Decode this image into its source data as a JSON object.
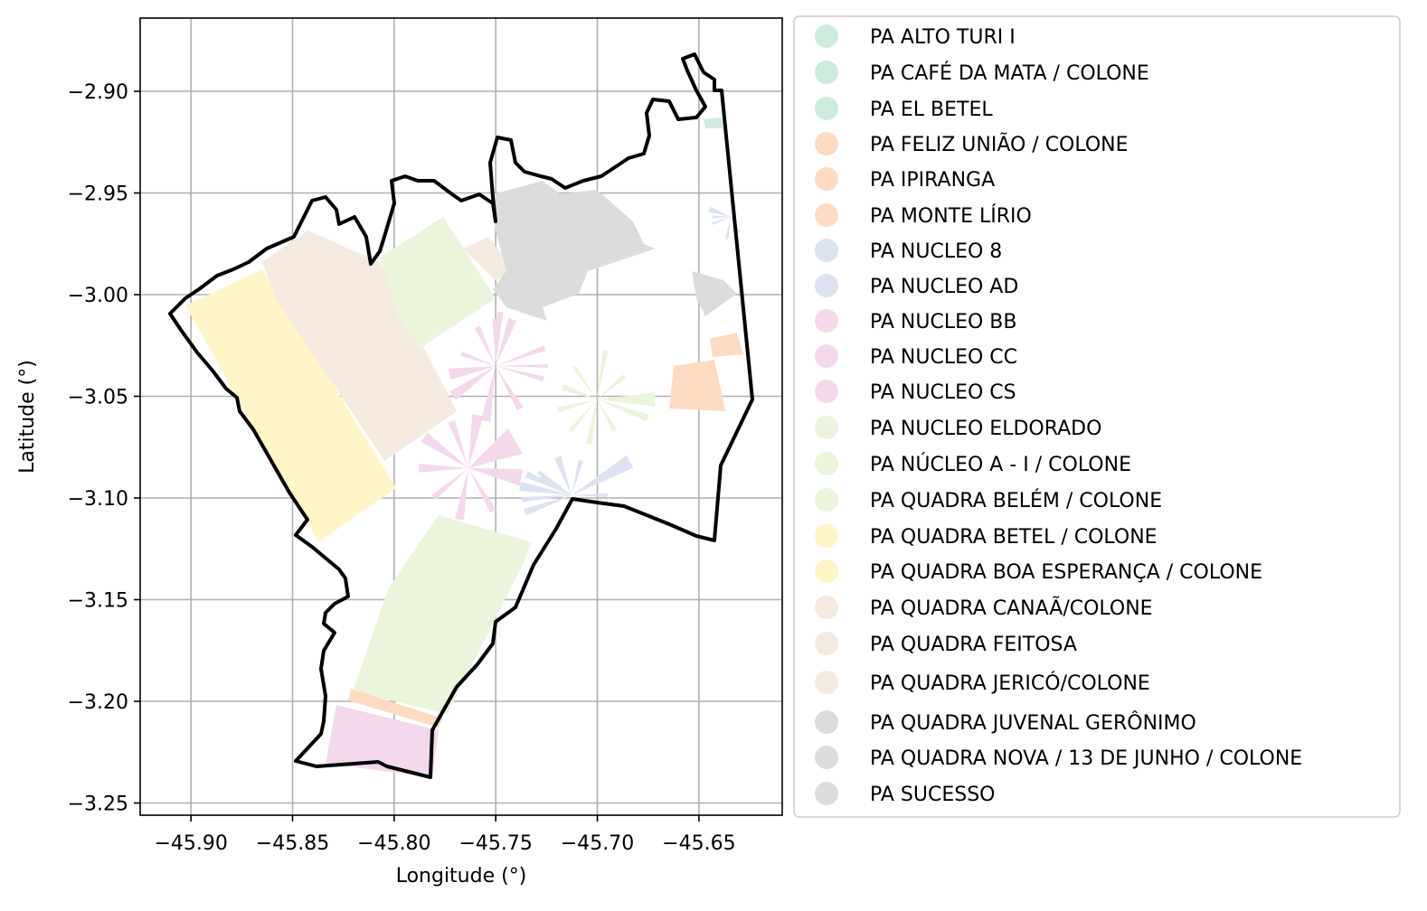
{
  "map": {
    "xlabel": "Longitude (°)",
    "ylabel": "Latitude (°)",
    "x_ticks": [
      "−45.90",
      "−45.85",
      "−45.80",
      "−45.75",
      "−45.70",
      "−45.65"
    ],
    "y_ticks": [
      "−2.90",
      "−2.95",
      "−3.00",
      "−3.05",
      "−3.10",
      "−3.15",
      "−3.20",
      "−3.25"
    ],
    "x_tick_values": [
      -45.9,
      -45.85,
      -45.8,
      -45.75,
      -45.7,
      -45.65
    ],
    "y_tick_values": [
      -2.9,
      -2.95,
      -3.0,
      -3.05,
      -3.1,
      -3.15,
      -3.2,
      -3.25
    ],
    "xlim": [
      -45.925,
      -45.609
    ],
    "ylim": [
      -3.256,
      -2.864
    ],
    "grid": true,
    "legend_placement": "outside right",
    "boundary_color": "#000000"
  },
  "legend": [
    {
      "label": "PA ALTO TURI I",
      "color": "#cdebdd"
    },
    {
      "label": "PA CAFÉ DA MATA / COLONE",
      "color": "#cdebdd"
    },
    {
      "label": "PA EL BETEL",
      "color": "#cdebdd"
    },
    {
      "label": "PA FELIZ UNIÃO / COLONE",
      "color": "#fcdbc2"
    },
    {
      "label": "PA IPIRANGA",
      "color": "#fcdbc2"
    },
    {
      "label": "PA MONTE  LÍRIO",
      "color": "#fcdbc2"
    },
    {
      "label": "PA NUCLEO 8",
      "color": "#dde2f0"
    },
    {
      "label": "PA NUCLEO AD",
      "color": "#dde2f0"
    },
    {
      "label": "PA NUCLEO BB",
      "color": "#f4d8eb"
    },
    {
      "label": "PA NUCLEO CC",
      "color": "#f4d8eb"
    },
    {
      "label": "PA NUCLEO CS",
      "color": "#f4d8eb"
    },
    {
      "label": "PA NUCLEO ELDORADO",
      "color": "#eaf5db"
    },
    {
      "label": "PA NÚCLEO A - I  / COLONE",
      "color": "#eaf5db"
    },
    {
      "label": "PA QUADRA BELÉM / COLONE",
      "color": "#eaf5db"
    },
    {
      "label": "PA QUADRA BETEL / COLONE",
      "color": "#fff5c8"
    },
    {
      "label": "PA QUADRA BOA ESPERANÇA / COLONE",
      "color": "#fff5c8"
    },
    {
      "label": "PA QUADRA CANAÃ/COLONE",
      "color": "#f4eadf"
    },
    {
      "label": "PA QUADRA FEITOSA",
      "color": "#f4eadf"
    },
    {
      "label": "PA QUADRA JERICÓ/COLONE",
      "color": "#f4eadf"
    },
    {
      "label": "PA QUADRA JUVENAL GERÔNIMO",
      "color": "#dcdcdc"
    },
    {
      "label": "PA QUADRA NOVA / 13 DE JUNHO / COLONE",
      "color": "#dcdcdc"
    },
    {
      "label": "PA SUCESSO",
      "color": "#dcdcdc"
    }
  ]
}
